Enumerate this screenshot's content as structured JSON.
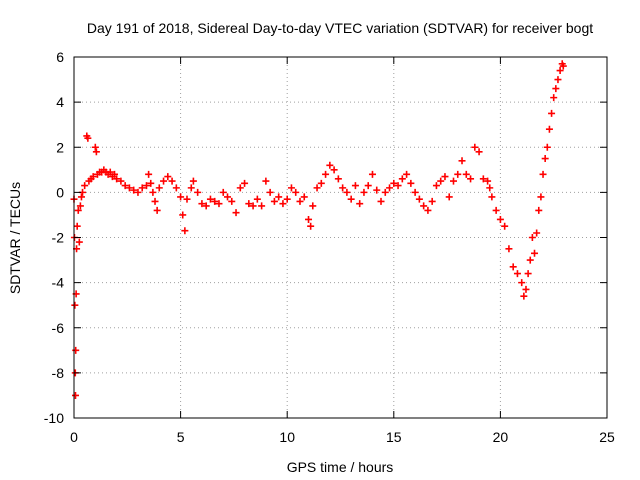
{
  "chart_data": {
    "type": "scatter",
    "title": "Day 191 of 2018, Sidereal Day-to-day VTEC variation (SDTVAR) for receiver bogt",
    "xlabel": "GPS time / hours",
    "ylabel": "SDTVAR / TECUs",
    "xlim": [
      0,
      25
    ],
    "ylim": [
      -10,
      6
    ],
    "xticks": [
      0,
      5,
      10,
      15,
      20,
      25
    ],
    "yticks": [
      -10,
      -8,
      -6,
      -4,
      -2,
      0,
      2,
      4,
      6
    ],
    "grid": true,
    "marker": "+",
    "color": "#ff0000",
    "series": [
      {
        "name": "SDTVAR",
        "points": [
          [
            0.0,
            -0.3
          ],
          [
            0.02,
            -2.0
          ],
          [
            0.04,
            -5.0
          ],
          [
            0.06,
            -8.0
          ],
          [
            0.07,
            -9.0
          ],
          [
            0.08,
            -7.0
          ],
          [
            0.1,
            -4.5
          ],
          [
            0.12,
            -2.5
          ],
          [
            0.15,
            -1.5
          ],
          [
            0.2,
            -0.8
          ],
          [
            0.25,
            -2.2
          ],
          [
            0.3,
            -0.6
          ],
          [
            0.35,
            -0.2
          ],
          [
            0.4,
            0.0
          ],
          [
            0.5,
            0.3
          ],
          [
            0.6,
            2.5
          ],
          [
            0.65,
            2.4
          ],
          [
            0.7,
            0.5
          ],
          [
            0.8,
            0.6
          ],
          [
            0.9,
            0.7
          ],
          [
            1.0,
            2.0
          ],
          [
            1.05,
            1.8
          ],
          [
            1.1,
            0.8
          ],
          [
            1.2,
            0.9
          ],
          [
            1.3,
            0.9
          ],
          [
            1.4,
            1.0
          ],
          [
            1.5,
            0.9
          ],
          [
            1.6,
            0.8
          ],
          [
            1.7,
            0.9
          ],
          [
            1.8,
            0.7
          ],
          [
            1.9,
            0.8
          ],
          [
            2.0,
            0.6
          ],
          [
            2.2,
            0.5
          ],
          [
            2.4,
            0.3
          ],
          [
            2.6,
            0.2
          ],
          [
            2.8,
            0.1
          ],
          [
            3.0,
            0.0
          ],
          [
            3.2,
            0.2
          ],
          [
            3.4,
            0.3
          ],
          [
            3.5,
            0.8
          ],
          [
            3.6,
            0.4
          ],
          [
            3.7,
            0.0
          ],
          [
            3.8,
            -0.4
          ],
          [
            3.9,
            -0.8
          ],
          [
            4.0,
            0.2
          ],
          [
            4.2,
            0.5
          ],
          [
            4.4,
            0.7
          ],
          [
            4.6,
            0.5
          ],
          [
            4.8,
            0.2
          ],
          [
            5.0,
            -0.2
          ],
          [
            5.1,
            -1.0
          ],
          [
            5.2,
            -1.7
          ],
          [
            5.3,
            -0.3
          ],
          [
            5.5,
            0.2
          ],
          [
            5.6,
            0.5
          ],
          [
            5.8,
            0.0
          ],
          [
            6.0,
            -0.5
          ],
          [
            6.2,
            -0.6
          ],
          [
            6.4,
            -0.3
          ],
          [
            6.6,
            -0.4
          ],
          [
            6.8,
            -0.5
          ],
          [
            7.0,
            0.0
          ],
          [
            7.2,
            -0.2
          ],
          [
            7.4,
            -0.4
          ],
          [
            7.6,
            -0.9
          ],
          [
            7.8,
            0.2
          ],
          [
            8.0,
            0.4
          ],
          [
            8.2,
            -0.5
          ],
          [
            8.4,
            -0.6
          ],
          [
            8.6,
            -0.3
          ],
          [
            8.8,
            -0.6
          ],
          [
            9.0,
            0.5
          ],
          [
            9.2,
            0.0
          ],
          [
            9.4,
            -0.4
          ],
          [
            9.6,
            -0.2
          ],
          [
            9.8,
            -0.5
          ],
          [
            10.0,
            -0.3
          ],
          [
            10.2,
            0.2
          ],
          [
            10.4,
            0.0
          ],
          [
            10.6,
            -0.4
          ],
          [
            10.8,
            -0.2
          ],
          [
            11.0,
            -1.2
          ],
          [
            11.1,
            -1.5
          ],
          [
            11.2,
            -0.6
          ],
          [
            11.4,
            0.2
          ],
          [
            11.6,
            0.4
          ],
          [
            11.8,
            0.8
          ],
          [
            12.0,
            1.2
          ],
          [
            12.2,
            1.0
          ],
          [
            12.4,
            0.6
          ],
          [
            12.6,
            0.2
          ],
          [
            12.8,
            0.0
          ],
          [
            13.0,
            -0.3
          ],
          [
            13.2,
            0.3
          ],
          [
            13.4,
            -0.5
          ],
          [
            13.6,
            0.0
          ],
          [
            13.8,
            0.3
          ],
          [
            14.0,
            0.8
          ],
          [
            14.2,
            0.1
          ],
          [
            14.4,
            -0.4
          ],
          [
            14.6,
            0.0
          ],
          [
            14.8,
            0.2
          ],
          [
            15.0,
            0.4
          ],
          [
            15.2,
            0.3
          ],
          [
            15.4,
            0.6
          ],
          [
            15.6,
            0.8
          ],
          [
            15.8,
            0.4
          ],
          [
            16.0,
            0.0
          ],
          [
            16.2,
            -0.3
          ],
          [
            16.4,
            -0.6
          ],
          [
            16.6,
            -0.8
          ],
          [
            16.8,
            -0.4
          ],
          [
            17.0,
            0.3
          ],
          [
            17.2,
            0.5
          ],
          [
            17.4,
            0.7
          ],
          [
            17.6,
            -0.2
          ],
          [
            17.8,
            0.5
          ],
          [
            18.0,
            0.8
          ],
          [
            18.2,
            1.4
          ],
          [
            18.4,
            0.8
          ],
          [
            18.6,
            0.6
          ],
          [
            18.8,
            2.0
          ],
          [
            19.0,
            1.8
          ],
          [
            19.2,
            0.6
          ],
          [
            19.4,
            0.5
          ],
          [
            19.5,
            0.2
          ],
          [
            19.6,
            -0.2
          ],
          [
            19.8,
            -0.8
          ],
          [
            20.0,
            -1.2
          ],
          [
            20.2,
            -1.5
          ],
          [
            20.4,
            -2.5
          ],
          [
            20.6,
            -3.3
          ],
          [
            20.8,
            -3.6
          ],
          [
            21.0,
            -4.0
          ],
          [
            21.1,
            -4.6
          ],
          [
            21.2,
            -4.3
          ],
          [
            21.3,
            -3.6
          ],
          [
            21.4,
            -3.0
          ],
          [
            21.5,
            -2.0
          ],
          [
            21.6,
            -2.7
          ],
          [
            21.7,
            -1.8
          ],
          [
            21.8,
            -0.8
          ],
          [
            21.9,
            -0.2
          ],
          [
            22.0,
            0.8
          ],
          [
            22.1,
            1.5
          ],
          [
            22.2,
            2.0
          ],
          [
            22.3,
            2.8
          ],
          [
            22.4,
            3.5
          ],
          [
            22.5,
            4.2
          ],
          [
            22.6,
            4.6
          ],
          [
            22.7,
            5.0
          ],
          [
            22.8,
            5.4
          ],
          [
            22.9,
            5.7
          ],
          [
            22.95,
            5.6
          ]
        ]
      }
    ]
  }
}
